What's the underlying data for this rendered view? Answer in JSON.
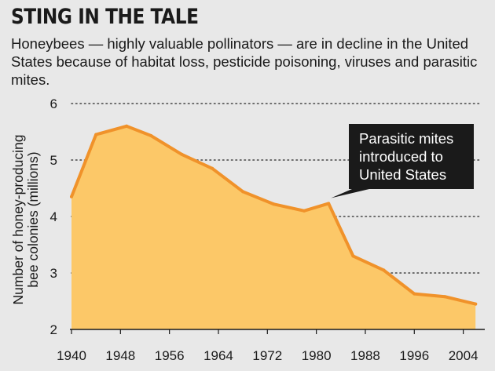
{
  "header": {
    "title": "STING IN THE TALE",
    "subtitle": "Honeybees — highly valuable pollinators — are in decline in the United States because of habitat loss, pesticide poisoning, viruses and parasitic mites."
  },
  "colors": {
    "area_fill": "#fcc868",
    "line": "#f0922a",
    "annotation_bg": "#1a1a1a",
    "grid": "#444444"
  },
  "chart_data": {
    "type": "area",
    "ylabel_lines": [
      "Number of honey-producing",
      "bee colonies (millions)"
    ],
    "xlabel": "",
    "xlim": [
      1940,
      2007
    ],
    "ylim": [
      2,
      6
    ],
    "x_ticks": [
      "1940",
      "1948",
      "1956",
      "1964",
      "1972",
      "1980",
      "1988",
      "1996",
      "2004"
    ],
    "y_ticks": [
      "2",
      "3",
      "4",
      "5",
      "6"
    ],
    "grid": "horizontal dotted",
    "series": [
      {
        "x": [
          1940,
          1944,
          1949,
          1953,
          1958,
          1963,
          1968,
          1973,
          1978,
          1982,
          1986,
          1991,
          1996,
          2001,
          2006
        ],
        "values": [
          4.35,
          5.45,
          5.6,
          5.43,
          5.1,
          4.85,
          4.44,
          4.22,
          4.1,
          4.23,
          3.3,
          3.05,
          2.63,
          2.58,
          2.45
        ]
      }
    ],
    "annotation": {
      "lines": [
        "Parasitic mites",
        "introduced to",
        "United States"
      ],
      "x": 1982,
      "y": 4.23
    }
  }
}
